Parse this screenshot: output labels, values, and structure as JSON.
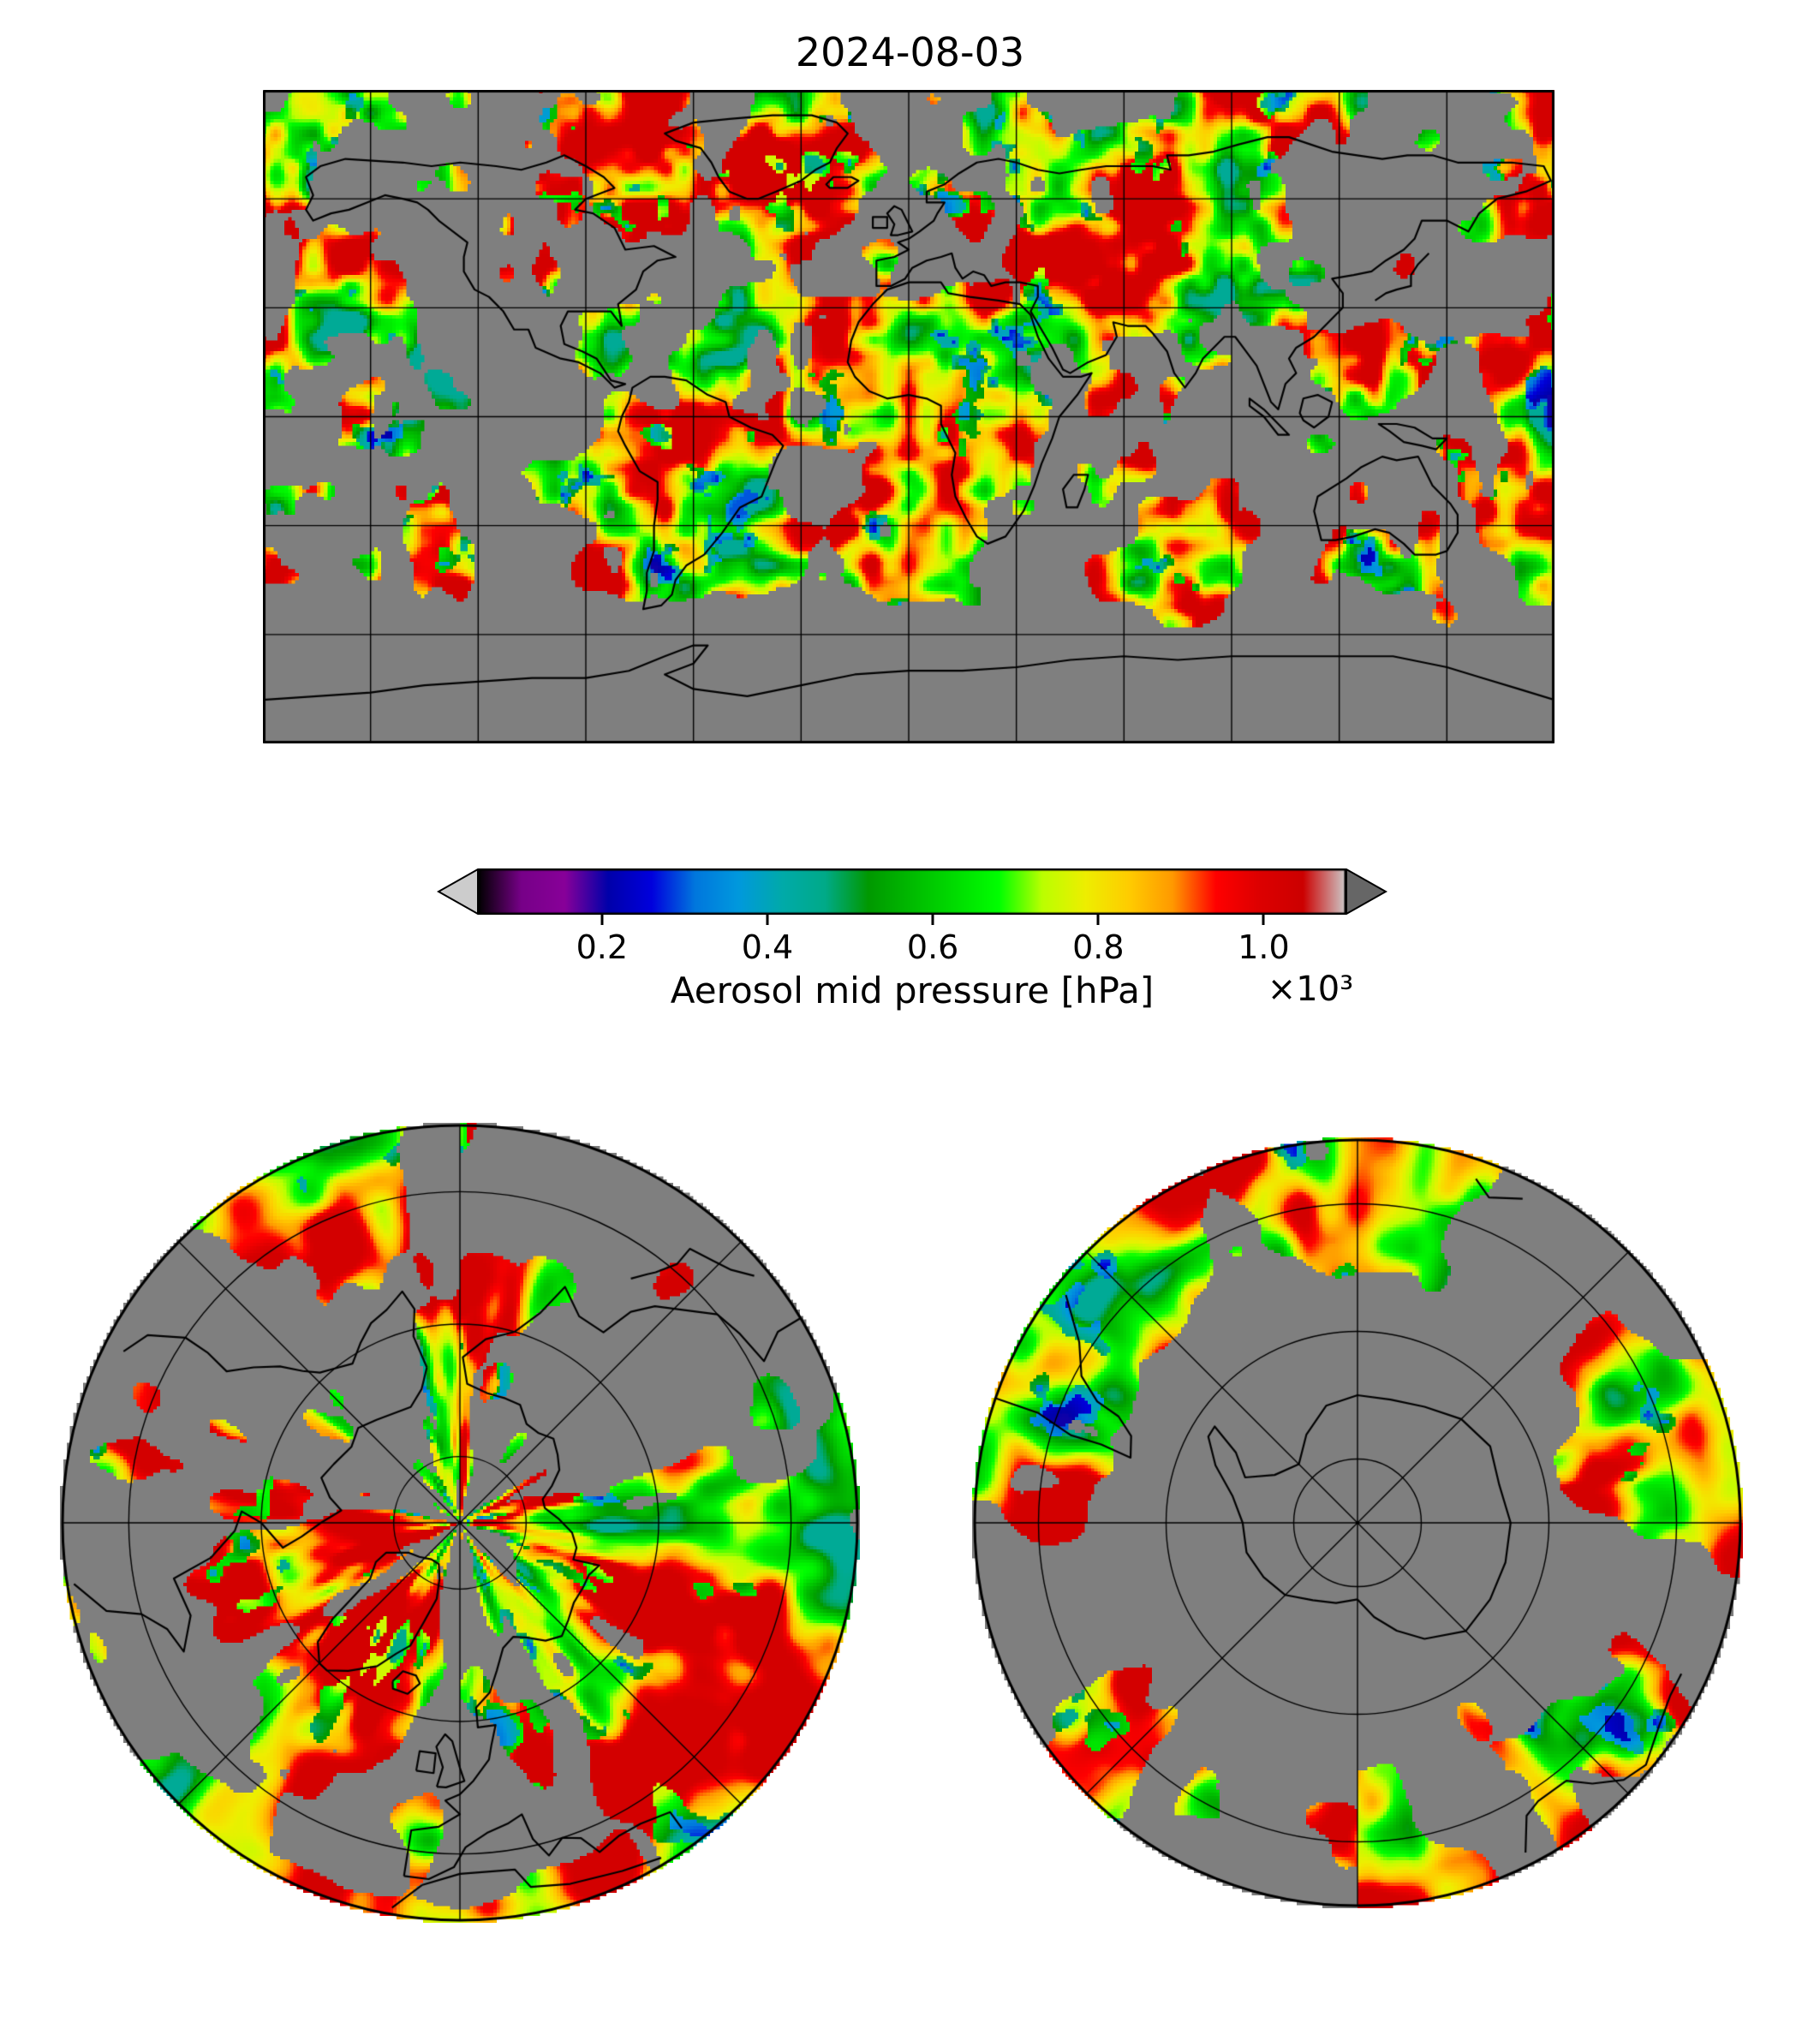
{
  "figure": {
    "title": "2024-08-03"
  },
  "colorbar": {
    "label": "Aerosol mid pressure [hPa]",
    "offset_text": "×10³",
    "tick_labels": [
      "0.2",
      "0.4",
      "0.6",
      "0.8",
      "1.0"
    ],
    "tick_values": [
      200,
      400,
      600,
      800,
      1000
    ],
    "vmin": 50,
    "vmax": 1100,
    "extend": "both",
    "under_color": "#cccccc",
    "over_color": "#666666"
  },
  "chart_data": {
    "type": "heatmap",
    "title": "2024-08-03",
    "variable": "Aerosol mid pressure",
    "units": "hPa",
    "scale_factor_text": "×10³",
    "value_range_hpa": [
      50,
      1100
    ],
    "colorbar_ticks_hpa": [
      200,
      400,
      600,
      800,
      1000
    ],
    "colorbar_extend": "both",
    "background_color": "#7f7f7f",
    "coastline_color": "#000000",
    "gridline_color": "#000000",
    "colormap": {
      "name": "nipy_spectral-like",
      "stops": [
        [
          0.0,
          "#000000"
        ],
        [
          0.05,
          "#770088"
        ],
        [
          0.1,
          "#880099"
        ],
        [
          0.15,
          "#0000aa"
        ],
        [
          0.2,
          "#0000dd"
        ],
        [
          0.25,
          "#0077dd"
        ],
        [
          0.3,
          "#0099dd"
        ],
        [
          0.35,
          "#00aaaa"
        ],
        [
          0.4,
          "#00aa88"
        ],
        [
          0.45,
          "#009900"
        ],
        [
          0.5,
          "#00bb00"
        ],
        [
          0.55,
          "#00dd00"
        ],
        [
          0.6,
          "#00ff00"
        ],
        [
          0.65,
          "#bbff00"
        ],
        [
          0.7,
          "#eeee00"
        ],
        [
          0.75,
          "#ffcc00"
        ],
        [
          0.8,
          "#ff9900"
        ],
        [
          0.85,
          "#ff0000"
        ],
        [
          0.9,
          "#dd0000"
        ],
        [
          0.95,
          "#cc0000"
        ],
        [
          1.0,
          "#cccccc"
        ]
      ]
    },
    "panels": [
      {
        "name": "global-equirectangular",
        "lon_range": [
          -180,
          180
        ],
        "lat_range": [
          -90,
          90
        ],
        "gridline_spacing_deg": 30
      },
      {
        "name": "north-polar",
        "boundary_lat": 30,
        "grid_circle_lats": [
          80,
          60,
          40
        ],
        "meridian_spacing_deg": 45
      },
      {
        "name": "south-polar",
        "boundary_lat": -30,
        "grid_circle_lats": [
          -80,
          -60,
          -40
        ],
        "meridian_spacing_deg": 45
      }
    ]
  }
}
